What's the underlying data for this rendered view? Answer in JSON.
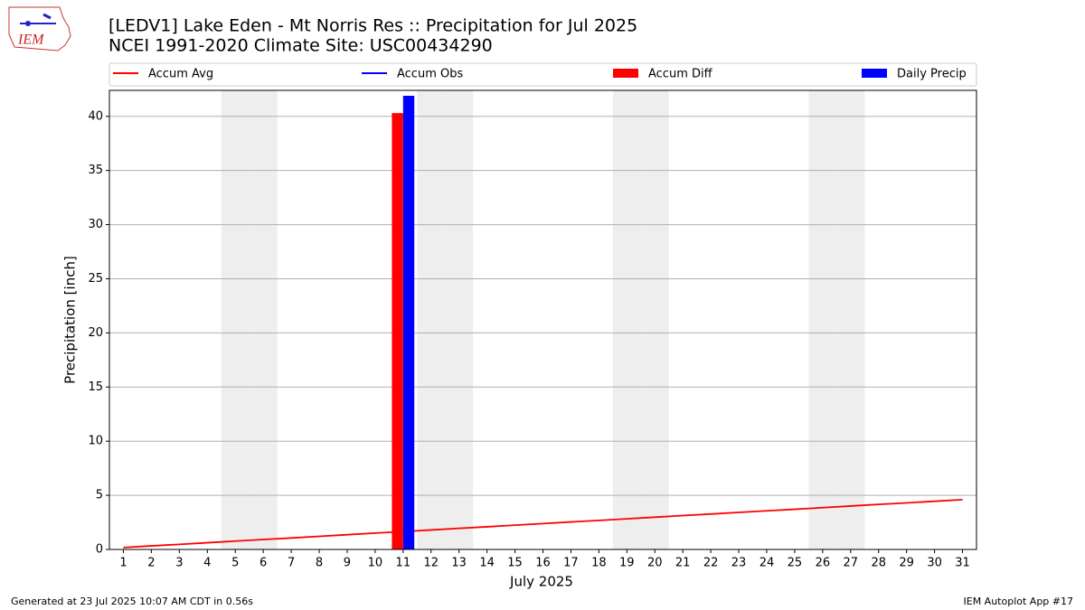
{
  "chart_data": {
    "type": "bar",
    "title": "[LEDV1] Lake Eden - Mt Norris Res :: Precipitation for Jul 2025",
    "subtitle": "NCEI 1991-2020 Climate Site: USC00434290",
    "x_label": "July 2025",
    "y_label": "Precipitation [inch]",
    "x": [
      1,
      2,
      3,
      4,
      5,
      6,
      7,
      8,
      9,
      10,
      11,
      12,
      13,
      14,
      15,
      16,
      17,
      18,
      19,
      20,
      21,
      22,
      23,
      24,
      25,
      26,
      27,
      28,
      29,
      30,
      31
    ],
    "xlim": [
      0.5,
      31.5
    ],
    "xticks": [
      1,
      2,
      3,
      4,
      5,
      6,
      7,
      8,
      9,
      10,
      11,
      12,
      13,
      14,
      15,
      16,
      17,
      18,
      19,
      20,
      21,
      22,
      23,
      24,
      25,
      26,
      27,
      28,
      29,
      30,
      31
    ],
    "ylim": [
      0,
      42.4
    ],
    "yticks": [
      0,
      5,
      10,
      15,
      20,
      25,
      30,
      35,
      40
    ],
    "grid": true,
    "shaded_days": [
      5,
      6,
      12,
      13,
      19,
      20,
      26,
      27
    ],
    "shade_color": "#eeeeee",
    "legend": "top",
    "series": [
      {
        "name": "Accum Avg",
        "type": "line",
        "color": "#ff0000",
        "values": [
          0.18,
          0.33,
          0.47,
          0.62,
          0.77,
          0.92,
          1.06,
          1.21,
          1.36,
          1.51,
          1.65,
          1.8,
          1.95,
          2.09,
          2.24,
          2.39,
          2.54,
          2.68,
          2.83,
          2.98,
          3.13,
          3.27,
          3.42,
          3.57,
          3.71,
          3.86,
          4.01,
          4.16,
          4.3,
          4.45,
          4.6
        ]
      },
      {
        "name": "Accum Obs",
        "type": "line",
        "color": "#0000ff",
        "values": [
          null,
          null,
          null,
          null,
          null,
          null,
          null,
          null,
          null,
          null,
          null,
          null,
          null,
          null,
          null,
          null,
          null,
          null,
          null,
          null,
          null,
          null,
          null,
          null,
          null,
          null,
          null,
          null,
          null,
          null,
          null
        ]
      },
      {
        "name": "Accum Diff",
        "type": "bar",
        "side": "left",
        "color": "#ff0000",
        "values": [
          null,
          null,
          null,
          null,
          null,
          null,
          null,
          null,
          null,
          null,
          40.3,
          null,
          null,
          null,
          null,
          null,
          null,
          null,
          null,
          null,
          null,
          null,
          null,
          null,
          null,
          null,
          null,
          null,
          null,
          null,
          null
        ]
      },
      {
        "name": "Daily Precip",
        "type": "bar",
        "side": "right",
        "color": "#0000ff",
        "values": [
          null,
          null,
          null,
          null,
          null,
          null,
          null,
          null,
          null,
          null,
          41.9,
          null,
          null,
          null,
          null,
          null,
          null,
          null,
          null,
          null,
          null,
          null,
          null,
          null,
          null,
          null,
          null,
          null,
          null,
          null,
          null
        ]
      }
    ]
  },
  "logo_text": "IEM",
  "footer_left": "Generated at 23 Jul 2025 10:07 AM CDT in 0.56s",
  "footer_right": "IEM Autoplot App #17"
}
